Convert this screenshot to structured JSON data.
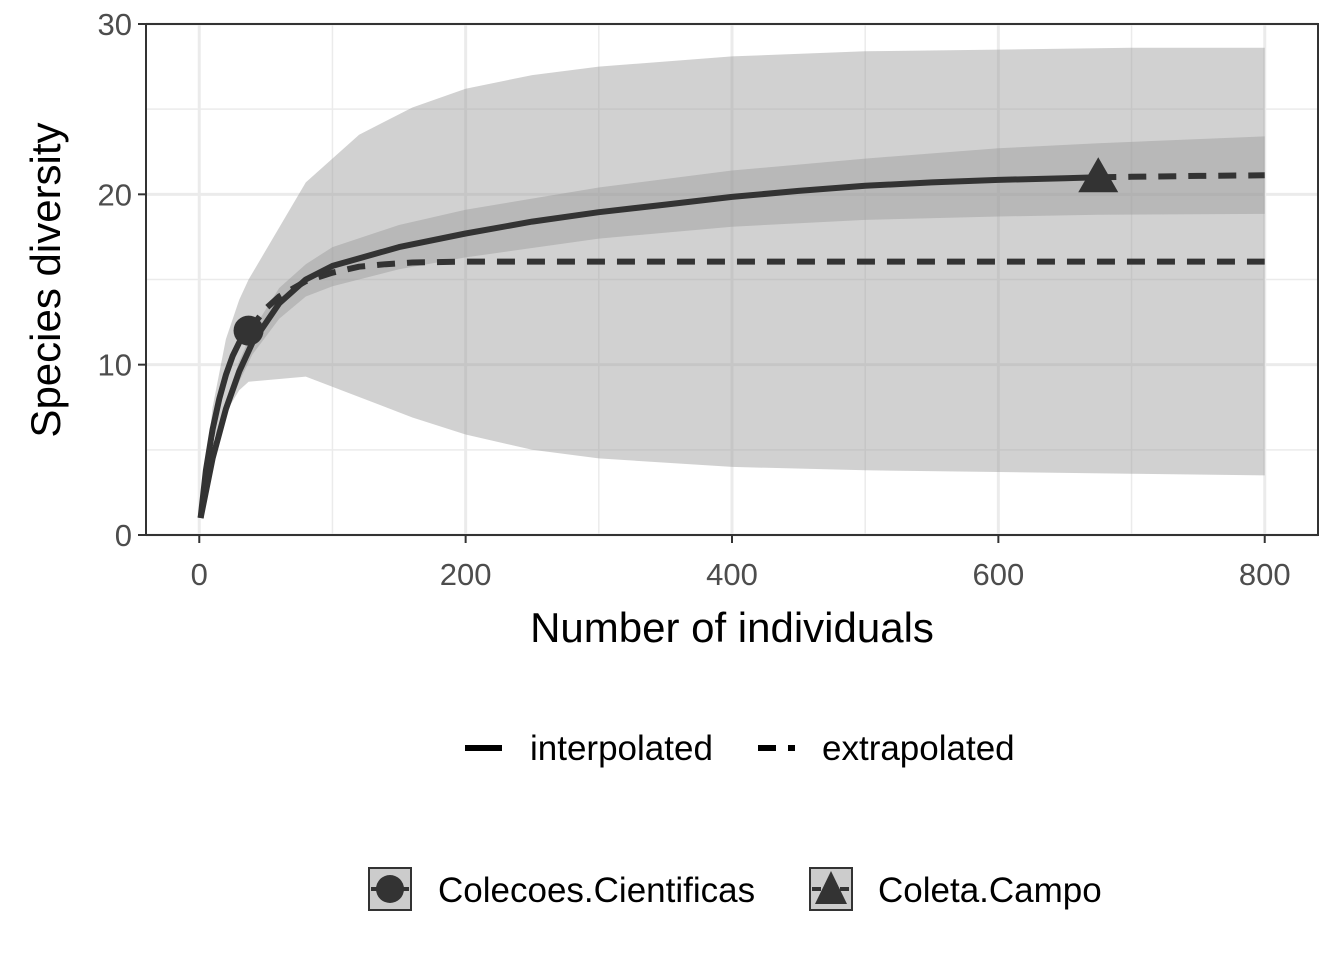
{
  "chart_data": {
    "type": "line",
    "xlabel": "Number of individuals",
    "ylabel": "Species diversity",
    "xlim": [
      -40,
      840
    ],
    "ylim": [
      0,
      30
    ],
    "x_ticks": [
      0,
      200,
      400,
      600,
      800
    ],
    "y_ticks": [
      0,
      10,
      20,
      30
    ],
    "x_tick_labels": [
      "0",
      "200",
      "400",
      "600",
      "800"
    ],
    "y_tick_labels": [
      "0",
      "10",
      "20",
      "30"
    ],
    "grid": true,
    "legend_position": "bottom",
    "method_legend": {
      "interpolated": "interpolated",
      "extrapolated": "extrapolated"
    },
    "series": [
      {
        "name": "Colecoes.Cientificas",
        "marker": "circle",
        "observed": [
          37,
          12
        ],
        "interpolated": [
          [
            1,
            1
          ],
          [
            5,
            3.8
          ],
          [
            10,
            6.2
          ],
          [
            15,
            8
          ],
          [
            20,
            9.4
          ],
          [
            25,
            10.5
          ],
          [
            30,
            11.3
          ],
          [
            37,
            12
          ]
        ],
        "extrapolated": [
          [
            37,
            12
          ],
          [
            50,
            13.3
          ],
          [
            60,
            14
          ],
          [
            80,
            14.9
          ],
          [
            100,
            15.4
          ],
          [
            120,
            15.75
          ],
          [
            140,
            15.9
          ],
          [
            160,
            16.0
          ],
          [
            200,
            16.05
          ],
          [
            300,
            16.05
          ],
          [
            400,
            16.05
          ],
          [
            500,
            16.05
          ],
          [
            600,
            16.05
          ],
          [
            700,
            16.05
          ],
          [
            800,
            16.05
          ]
        ],
        "lower": [
          [
            1,
            1
          ],
          [
            10,
            5.5
          ],
          [
            20,
            7.2
          ],
          [
            30,
            8.5
          ],
          [
            37,
            9.0
          ],
          [
            80,
            9.3
          ],
          [
            120,
            8.1
          ],
          [
            160,
            6.9
          ],
          [
            200,
            5.9
          ],
          [
            250,
            5.0
          ],
          [
            300,
            4.5
          ],
          [
            400,
            4.0
          ],
          [
            500,
            3.8
          ],
          [
            600,
            3.7
          ],
          [
            700,
            3.6
          ],
          [
            800,
            3.5
          ]
        ],
        "upper": [
          [
            1,
            1
          ],
          [
            10,
            7.5
          ],
          [
            20,
            11.5
          ],
          [
            30,
            13.8
          ],
          [
            37,
            15.0
          ],
          [
            80,
            20.7
          ],
          [
            120,
            23.5
          ],
          [
            160,
            25.1
          ],
          [
            200,
            26.2
          ],
          [
            250,
            27.0
          ],
          [
            300,
            27.5
          ],
          [
            400,
            28.1
          ],
          [
            500,
            28.4
          ],
          [
            600,
            28.5
          ],
          [
            700,
            28.6
          ],
          [
            800,
            28.6
          ]
        ]
      },
      {
        "name": "Coleta.Campo",
        "marker": "triangle",
        "observed": [
          675,
          21
        ],
        "interpolated": [
          [
            1,
            1
          ],
          [
            10,
            4.5
          ],
          [
            20,
            7.4
          ],
          [
            30,
            9.6
          ],
          [
            40,
            11.3
          ],
          [
            60,
            13.6
          ],
          [
            80,
            15.0
          ],
          [
            100,
            15.8
          ],
          [
            150,
            16.9
          ],
          [
            200,
            17.7
          ],
          [
            250,
            18.4
          ],
          [
            300,
            18.95
          ],
          [
            350,
            19.4
          ],
          [
            400,
            19.85
          ],
          [
            450,
            20.2
          ],
          [
            500,
            20.5
          ],
          [
            550,
            20.7
          ],
          [
            600,
            20.85
          ],
          [
            650,
            20.95
          ],
          [
            675,
            21.0
          ]
        ],
        "extrapolated": [
          [
            675,
            21.0
          ],
          [
            700,
            21.03
          ],
          [
            750,
            21.08
          ],
          [
            800,
            21.12
          ]
        ],
        "lower": [
          [
            1,
            1
          ],
          [
            10,
            4.3
          ],
          [
            20,
            7.0
          ],
          [
            30,
            9.0
          ],
          [
            40,
            10.6
          ],
          [
            60,
            12.7
          ],
          [
            80,
            14.0
          ],
          [
            100,
            14.6
          ],
          [
            150,
            15.6
          ],
          [
            200,
            16.3
          ],
          [
            300,
            17.4
          ],
          [
            400,
            18.1
          ],
          [
            500,
            18.5
          ],
          [
            600,
            18.7
          ],
          [
            675,
            18.8
          ],
          [
            800,
            18.85
          ]
        ],
        "upper": [
          [
            1,
            1
          ],
          [
            10,
            4.7
          ],
          [
            20,
            7.8
          ],
          [
            30,
            10.2
          ],
          [
            40,
            12.0
          ],
          [
            60,
            14.5
          ],
          [
            80,
            15.9
          ],
          [
            100,
            16.9
          ],
          [
            150,
            18.2
          ],
          [
            200,
            19.1
          ],
          [
            300,
            20.4
          ],
          [
            400,
            21.4
          ],
          [
            500,
            22.1
          ],
          [
            600,
            22.7
          ],
          [
            675,
            23.0
          ],
          [
            800,
            23.4
          ]
        ]
      }
    ]
  }
}
